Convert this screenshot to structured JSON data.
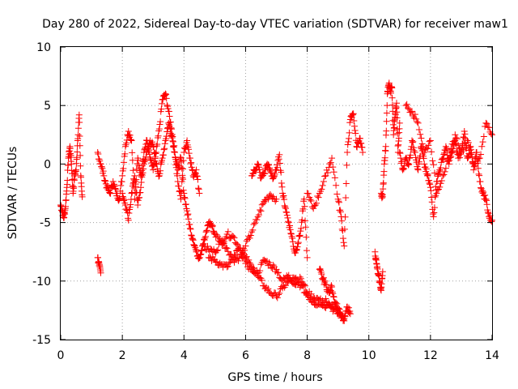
{
  "chart_data": {
    "type": "scatter",
    "title": "Day 280 of 2022, Sidereal Day-to-day VTEC variation (SDTVAR) for receiver maw1",
    "xlabel": "GPS time / hours",
    "ylabel": "SDTVAR / TECUs",
    "xlim": [
      0,
      14
    ],
    "ylim": [
      -15,
      10
    ],
    "xticks": [
      0,
      2,
      4,
      6,
      8,
      10,
      12,
      14
    ],
    "yticks": [
      -15,
      -10,
      -5,
      0,
      5,
      10
    ],
    "grid": true,
    "marker": "+",
    "color": "#ff0000",
    "series": [
      {
        "name": "maw1",
        "segments": [
          {
            "x": [
              0.0,
              0.05,
              0.1,
              0.15,
              0.2,
              0.25,
              0.3,
              0.35,
              0.4,
              0.45,
              0.5,
              0.55,
              0.6,
              0.65,
              0.7
            ],
            "y": [
              -3.5,
              -4.0,
              -4.6,
              -3.8,
              -2.0,
              0.5,
              1.5,
              0.0,
              -2.5,
              -1.0,
              -0.5,
              2.0,
              4.2,
              -1.0,
              -2.8
            ]
          },
          {
            "x": [
              1.2,
              1.25,
              1.3
            ],
            "y": [
              -8.0,
              -8.7,
              -9.3
            ]
          },
          {
            "x": [
              1.2,
              1.3,
              1.4,
              1.5,
              1.6,
              1.7,
              1.8,
              1.9,
              2.0,
              2.1,
              2.2,
              2.3,
              2.4,
              2.5,
              2.6,
              2.7,
              2.8,
              2.9,
              3.0,
              3.1,
              3.2,
              3.3,
              3.4,
              3.5,
              3.6,
              3.7,
              3.8,
              3.9,
              4.0,
              4.1,
              4.2,
              4.3,
              4.4,
              4.5
            ],
            "y": [
              1.0,
              0.0,
              -1.0,
              -2.0,
              -2.5,
              -1.5,
              -2.5,
              -3.0,
              -1.0,
              1.5,
              2.8,
              2.0,
              -3.0,
              0.5,
              -1.0,
              1.0,
              2.0,
              0.5,
              -0.5,
              1.0,
              3.0,
              5.5,
              6.0,
              4.5,
              3.0,
              1.0,
              -1.5,
              -3.0,
              1.0,
              2.0,
              0.5,
              -1.0,
              -0.5,
              -2.5
            ]
          },
          {
            "x": [
              2.0,
              2.1,
              2.2,
              2.3,
              2.4,
              2.5,
              2.6,
              2.7,
              2.8,
              2.9,
              3.0,
              3.1,
              3.2,
              3.3,
              3.4,
              3.5,
              3.6,
              3.7,
              3.8,
              3.9,
              4.0,
              4.1,
              4.2,
              4.3,
              4.4,
              4.5,
              4.6,
              4.7,
              4.8,
              4.9,
              5.0,
              5.2,
              5.4,
              5.6,
              5.8,
              6.0,
              6.2,
              6.4,
              6.6,
              6.8,
              7.0
            ],
            "y": [
              -2.5,
              -3.5,
              -4.8,
              -2.5,
              -1.0,
              -3.5,
              -2.0,
              0.0,
              1.0,
              2.0,
              1.5,
              0.0,
              -1.0,
              0.5,
              2.0,
              3.5,
              2.5,
              1.0,
              -0.5,
              0.5,
              -2.5,
              -4.0,
              -5.5,
              -6.5,
              -7.5,
              -8.0,
              -7.0,
              -6.2,
              -5.0,
              -5.2,
              -6.0,
              -6.6,
              -7.2,
              -8.2,
              -8.0,
              -7.0,
              -5.8,
              -4.5,
              -3.2,
              -2.6,
              -3.0
            ]
          },
          {
            "x": [
              4.6,
              4.8,
              5.0,
              5.2,
              5.4,
              5.6,
              5.8,
              6.0,
              6.2,
              6.4,
              6.6,
              6.8,
              7.0,
              7.2,
              7.4,
              7.6,
              7.8,
              8.0,
              8.2,
              8.4,
              8.6,
              8.8,
              9.0
            ],
            "y": [
              -7.0,
              -7.3,
              -7.5,
              -6.7,
              -6.0,
              -6.2,
              -7.2,
              -8.0,
              -8.8,
              -9.6,
              -10.4,
              -11.0,
              -11.3,
              -10.6,
              -10.0,
              -9.8,
              -10.4,
              -11.2,
              -11.8,
              -12.0,
              -11.5,
              -12.3,
              -12.8
            ]
          },
          {
            "x": [
              4.8,
              5.0,
              5.2,
              5.4,
              5.6,
              5.8,
              6.0,
              6.2,
              6.4,
              6.6,
              6.8,
              7.0,
              7.2,
              7.4,
              7.6,
              7.8,
              8.0,
              8.2,
              8.4,
              8.6,
              8.8,
              9.0,
              9.2
            ],
            "y": [
              -8.0,
              -8.2,
              -8.6,
              -8.8,
              -8.0,
              -7.2,
              -8.5,
              -9.0,
              -9.3,
              -8.2,
              -8.6,
              -9.0,
              -10.0,
              -9.5,
              -10.3,
              -9.8,
              -11.0,
              -11.4,
              -11.6,
              -12.3,
              -12.0,
              -12.8,
              -13.2
            ]
          },
          {
            "x": [
              6.2,
              6.3,
              6.4,
              6.5,
              6.6,
              6.7,
              6.8,
              6.9,
              7.0,
              7.1,
              7.2,
              7.3,
              7.4,
              7.5,
              7.6,
              7.7,
              7.8,
              7.9,
              8.0
            ],
            "y": [
              -1.0,
              -0.5,
              0.0,
              -1.2,
              -0.8,
              0.0,
              -0.6,
              -1.2,
              -0.5,
              0.8,
              -2.5,
              -3.8,
              -5.0,
              -6.2,
              -7.6,
              -6.8,
              -5.5,
              -3.0,
              -8.0
            ]
          },
          {
            "x": [
              8.0,
              8.2,
              8.4,
              8.6,
              8.8,
              9.0,
              9.1,
              9.2,
              9.3,
              9.4,
              9.5,
              9.6,
              9.7,
              9.8
            ],
            "y": [
              -2.5,
              -3.8,
              -2.5,
              -1.0,
              0.5,
              -3.0,
              -4.5,
              -7.0,
              1.0,
              3.8,
              4.3,
              1.5,
              2.2,
              1.0
            ]
          },
          {
            "x": [
              8.4,
              8.5,
              8.6,
              8.7,
              8.8,
              8.9,
              9.0,
              9.1,
              9.2,
              9.3,
              9.4
            ],
            "y": [
              -9.0,
              -9.8,
              -10.3,
              -11.0,
              -10.5,
              -11.8,
              -12.3,
              -13.0,
              -13.4,
              -12.2,
              -12.8
            ]
          },
          {
            "x": [
              10.2,
              10.25,
              10.3,
              10.35,
              10.4,
              10.45
            ],
            "y": [
              -7.5,
              -8.5,
              -9.4,
              -10.0,
              -10.8,
              -9.2
            ]
          },
          {
            "x": [
              10.4,
              10.45,
              10.5,
              10.55,
              10.6,
              10.65,
              10.7,
              10.75,
              10.8,
              10.85,
              10.9,
              10.95,
              11.0
            ],
            "y": [
              -2.5,
              -2.8,
              0.0,
              1.5,
              6.0,
              6.8,
              6.2,
              6.5,
              2.5,
              4.0,
              5.2,
              1.0,
              3.5
            ]
          },
          {
            "x": [
              11.0,
              11.1,
              11.2,
              11.3,
              11.4,
              11.5,
              11.6,
              11.7,
              11.8,
              11.9,
              12.0,
              12.1,
              12.2,
              12.3,
              12.4,
              12.5,
              12.6,
              12.7,
              12.8,
              12.9,
              13.0,
              13.1,
              13.2,
              13.3,
              13.4,
              13.5,
              13.6,
              13.7,
              13.8,
              13.9,
              14.0
            ],
            "y": [
              1.0,
              -0.5,
              0.5,
              0.0,
              2.0,
              1.0,
              -0.5,
              1.5,
              0.0,
              -1.0,
              -2.0,
              -4.5,
              -1.5,
              -0.5,
              0.5,
              1.5,
              0.0,
              1.0,
              2.0,
              0.5,
              1.0,
              2.8,
              0.5,
              1.5,
              -0.5,
              1.0,
              -1.5,
              -2.5,
              -3.0,
              -4.5,
              -4.8
            ]
          },
          {
            "x": [
              11.2,
              11.4,
              11.6,
              11.8,
              12.0,
              12.2,
              12.4,
              12.6,
              12.8,
              13.0,
              13.2,
              13.4,
              13.6,
              13.8,
              14.0
            ],
            "y": [
              5.0,
              4.5,
              3.5,
              1.0,
              2.0,
              -2.5,
              -1.0,
              0.5,
              2.5,
              1.0,
              2.0,
              0.0,
              0.5,
              3.5,
              2.5
            ]
          }
        ]
      }
    ]
  }
}
